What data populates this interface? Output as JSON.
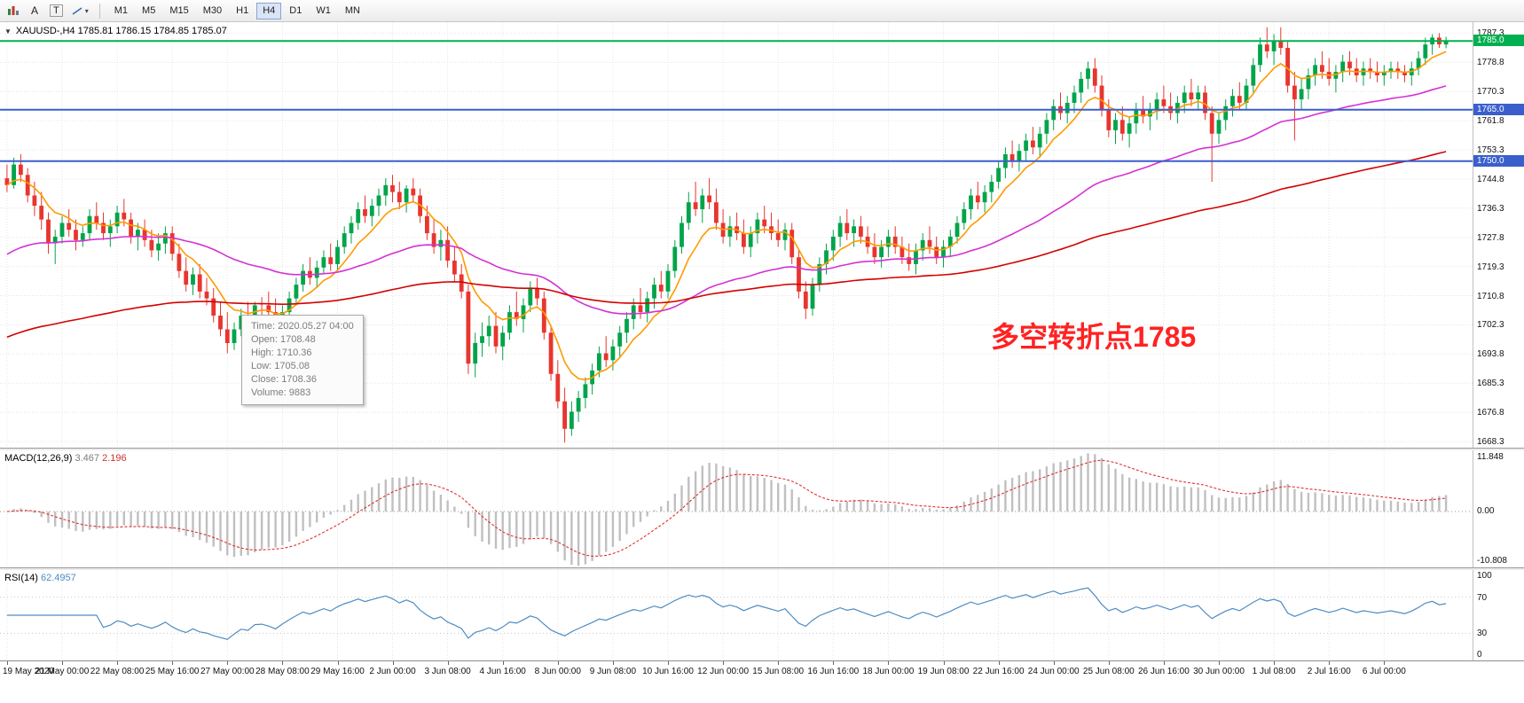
{
  "toolbar": {
    "letter_buttons": [
      "A",
      "T"
    ],
    "timeframes": [
      "M1",
      "M5",
      "M15",
      "M30",
      "H1",
      "H4",
      "D1",
      "W1",
      "MN"
    ],
    "active_timeframe": "H4"
  },
  "chart": {
    "symbol_line": "XAUUSD-,H4  1785.81 1786.15 1784.85 1785.07",
    "annotation": "多空转折点1785",
    "price_range": [
      1666.5,
      1790.5
    ],
    "y_ticks": [
      1787.3,
      1778.8,
      1770.3,
      1761.8,
      1753.3,
      1744.8,
      1736.3,
      1727.8,
      1719.3,
      1710.8,
      1702.3,
      1693.8,
      1685.3,
      1676.8,
      1668.3
    ],
    "tags": [
      {
        "text": "1785.0",
        "price": 1785.0,
        "color_key": "hline_green"
      },
      {
        "text": "1765.0",
        "price": 1765.0,
        "color_key": "hline_blue"
      },
      {
        "text": "1750.0",
        "price": 1750.0,
        "color_key": "hline_blue"
      }
    ],
    "hlines": [
      {
        "price": 1785.0,
        "color_key": "hline_green",
        "width": 2
      },
      {
        "price": 1765.0,
        "color_key": "hline_blue",
        "width": 2
      },
      {
        "price": 1750.0,
        "color_key": "hline_blue",
        "width": 2
      }
    ],
    "tooltip": {
      "rows": [
        "Time: 2020.05.27 04:00",
        "Open: 1708.48",
        "High: 1710.36",
        "Low:  1705.08",
        "Close: 1708.36",
        "Volume: 9883"
      ]
    }
  },
  "macd": {
    "label": "MACD(12,26,9)",
    "value_main": "3.467",
    "value_signal": "2.196",
    "fast": 12,
    "slow": 26,
    "signal": 9,
    "range": [
      -10.808,
      11.848
    ],
    "axis_labels": [
      "11.848",
      "0.00",
      "-10.808"
    ]
  },
  "rsi": {
    "label": "RSI(14)",
    "value": "62.4957",
    "period": 14,
    "levels": [
      70,
      30
    ],
    "axis_labels": [
      {
        "text": "100",
        "value": 100
      },
      {
        "text": "70",
        "value": 70
      },
      {
        "text": "30",
        "value": 30
      },
      {
        "text": "0",
        "value": 0
      }
    ]
  },
  "colors": {
    "up": "#00a44a",
    "down": "#e8352e",
    "ma_fast": "#ff9a00",
    "ma_mid": "#d431d4",
    "ma_slow": "#d40000",
    "hline_green": "#00b050",
    "hline_blue": "#3a5fcd",
    "macd_hist": "#c0c0c0",
    "macd_signal": "#e03030",
    "rsi": "#4e8cc2",
    "annotation": "#ff2222"
  },
  "chart_data": {
    "type": "candlestick",
    "symbol": "XAUUSD-",
    "timeframe": "H4",
    "label_step": 8,
    "x_labels": [
      "19 May 2020",
      "21 May 00:00",
      "22 May 08:00",
      "25 May 16:00",
      "27 May 00:00",
      "28 May 08:00",
      "29 May 16:00",
      "2 Jun 00:00",
      "3 Jun 08:00",
      "4 Jun 16:00",
      "8 Jun 00:00",
      "9 Jun 08:00",
      "10 Jun 16:00",
      "12 Jun 00:00",
      "15 Jun 08:00",
      "16 Jun 16:00",
      "18 Jun 00:00",
      "19 Jun 08:00",
      "22 Jun 16:00",
      "24 Jun 00:00",
      "25 Jun 08:00",
      "26 Jun 16:00",
      "30 Jun 00:00",
      "1 Jul 08:00",
      "2 Jul 16:00",
      "6 Jul 00:00"
    ],
    "moving_averages": [
      {
        "name": "fast",
        "period": 8,
        "seed": null,
        "color_key": "ma_fast"
      },
      {
        "name": "mid",
        "period": 48,
        "seed": 1722,
        "color_key": "ma_mid"
      },
      {
        "name": "slow",
        "period": 130,
        "seed": 1698,
        "color_key": "ma_slow"
      }
    ],
    "ohlc": [
      [
        1745,
        1749,
        1741,
        1743
      ],
      [
        1743,
        1751,
        1742,
        1749
      ],
      [
        1749,
        1752,
        1744,
        1746
      ],
      [
        1746,
        1748,
        1738,
        1740
      ],
      [
        1740,
        1744,
        1734,
        1737
      ],
      [
        1737,
        1741,
        1730,
        1733
      ],
      [
        1733,
        1735,
        1723,
        1726
      ],
      [
        1726,
        1730,
        1720,
        1728
      ],
      [
        1728,
        1734,
        1726,
        1732
      ],
      [
        1732,
        1736,
        1728,
        1730
      ],
      [
        1730,
        1733,
        1724,
        1727
      ],
      [
        1727,
        1731,
        1725,
        1729
      ],
      [
        1729,
        1736,
        1727,
        1734
      ],
      [
        1734,
        1738,
        1730,
        1732
      ],
      [
        1732,
        1735,
        1727,
        1729
      ],
      [
        1729,
        1733,
        1725,
        1731
      ],
      [
        1731,
        1737,
        1729,
        1735
      ],
      [
        1735,
        1739,
        1731,
        1733
      ],
      [
        1733,
        1735,
        1726,
        1728
      ],
      [
        1728,
        1732,
        1724,
        1730
      ],
      [
        1730,
        1733,
        1725,
        1727
      ],
      [
        1727,
        1730,
        1722,
        1724
      ],
      [
        1724,
        1729,
        1721,
        1726
      ],
      [
        1726,
        1731,
        1723,
        1729
      ],
      [
        1729,
        1731,
        1721,
        1723
      ],
      [
        1723,
        1726,
        1716,
        1718
      ],
      [
        1718,
        1722,
        1712,
        1714
      ],
      [
        1714,
        1719,
        1711,
        1717
      ],
      [
        1717,
        1720,
        1710,
        1712
      ],
      [
        1712,
        1716,
        1708,
        1710
      ],
      [
        1710,
        1713,
        1703,
        1705
      ],
      [
        1705,
        1709,
        1699,
        1701
      ],
      [
        1701,
        1706,
        1694,
        1697
      ],
      [
        1697,
        1703,
        1695,
        1701
      ],
      [
        1701,
        1707,
        1699,
        1705
      ],
      [
        1705,
        1709,
        1701,
        1703
      ],
      [
        1703,
        1709,
        1701,
        1708
      ],
      [
        1708.5,
        1710.4,
        1705.1,
        1708.4
      ],
      [
        1708,
        1712,
        1704,
        1706
      ],
      [
        1706,
        1710,
        1700,
        1702
      ],
      [
        1702,
        1708,
        1700,
        1706
      ],
      [
        1706,
        1712,
        1704,
        1710
      ],
      [
        1710,
        1716,
        1708,
        1714
      ],
      [
        1714,
        1720,
        1712,
        1718
      ],
      [
        1718,
        1722,
        1714,
        1716
      ],
      [
        1716,
        1721,
        1713,
        1719
      ],
      [
        1719,
        1724,
        1717,
        1722
      ],
      [
        1722,
        1726,
        1718,
        1720
      ],
      [
        1720,
        1727,
        1718,
        1725
      ],
      [
        1725,
        1731,
        1723,
        1729
      ],
      [
        1729,
        1734,
        1726,
        1732
      ],
      [
        1732,
        1738,
        1730,
        1736
      ],
      [
        1736,
        1740,
        1732,
        1734
      ],
      [
        1734,
        1739,
        1731,
        1737
      ],
      [
        1737,
        1742,
        1734,
        1740
      ],
      [
        1740,
        1745,
        1737,
        1743
      ],
      [
        1743,
        1746,
        1738,
        1741
      ],
      [
        1741,
        1744,
        1736,
        1738
      ],
      [
        1738,
        1743,
        1735,
        1742
      ],
      [
        1742,
        1745,
        1738,
        1740
      ],
      [
        1740,
        1742,
        1732,
        1734
      ],
      [
        1734,
        1737,
        1727,
        1729
      ],
      [
        1729,
        1733,
        1723,
        1725
      ],
      [
        1725,
        1730,
        1721,
        1727
      ],
      [
        1727,
        1731,
        1719,
        1721
      ],
      [
        1721,
        1725,
        1715,
        1717
      ],
      [
        1717,
        1720,
        1710,
        1712
      ],
      [
        1712,
        1714,
        1688,
        1691
      ],
      [
        1691,
        1700,
        1687,
        1697
      ],
      [
        1697,
        1703,
        1693,
        1699
      ],
      [
        1699,
        1705,
        1696,
        1702
      ],
      [
        1702,
        1706,
        1694,
        1696
      ],
      [
        1696,
        1702,
        1692,
        1700
      ],
      [
        1700,
        1708,
        1698,
        1706
      ],
      [
        1706,
        1712,
        1702,
        1704
      ],
      [
        1704,
        1710,
        1700,
        1708
      ],
      [
        1708,
        1715,
        1706,
        1713
      ],
      [
        1713,
        1716,
        1708,
        1710
      ],
      [
        1710,
        1712,
        1698,
        1700
      ],
      [
        1700,
        1702,
        1686,
        1688
      ],
      [
        1688,
        1692,
        1678,
        1680
      ],
      [
        1680,
        1684,
        1668,
        1672
      ],
      [
        1672,
        1680,
        1670,
        1677
      ],
      [
        1677,
        1683,
        1674,
        1681
      ],
      [
        1681,
        1687,
        1678,
        1685
      ],
      [
        1685,
        1691,
        1682,
        1689
      ],
      [
        1689,
        1696,
        1687,
        1694
      ],
      [
        1694,
        1699,
        1690,
        1692
      ],
      [
        1692,
        1698,
        1689,
        1696
      ],
      [
        1696,
        1702,
        1693,
        1700
      ],
      [
        1700,
        1706,
        1697,
        1704
      ],
      [
        1704,
        1710,
        1701,
        1708
      ],
      [
        1708,
        1713,
        1704,
        1706
      ],
      [
        1706,
        1712,
        1703,
        1710
      ],
      [
        1710,
        1716,
        1707,
        1714
      ],
      [
        1714,
        1718,
        1710,
        1712
      ],
      [
        1712,
        1720,
        1710,
        1718
      ],
      [
        1718,
        1727,
        1716,
        1725
      ],
      [
        1725,
        1734,
        1723,
        1732
      ],
      [
        1732,
        1741,
        1730,
        1738
      ],
      [
        1738,
        1744,
        1734,
        1736
      ],
      [
        1736,
        1742,
        1732,
        1740
      ],
      [
        1740,
        1745,
        1736,
        1738
      ],
      [
        1738,
        1742,
        1730,
        1732
      ],
      [
        1732,
        1736,
        1726,
        1728
      ],
      [
        1728,
        1734,
        1725,
        1731
      ],
      [
        1731,
        1735,
        1727,
        1729
      ],
      [
        1729,
        1733,
        1723,
        1725
      ],
      [
        1725,
        1731,
        1722,
        1729
      ],
      [
        1729,
        1735,
        1726,
        1733
      ],
      [
        1733,
        1737,
        1729,
        1731
      ],
      [
        1731,
        1735,
        1727,
        1729
      ],
      [
        1729,
        1733,
        1725,
        1727
      ],
      [
        1727,
        1732,
        1724,
        1730
      ],
      [
        1730,
        1732,
        1720,
        1722
      ],
      [
        1722,
        1724,
        1710,
        1712
      ],
      [
        1712,
        1715,
        1704,
        1707
      ],
      [
        1707,
        1716,
        1705,
        1714
      ],
      [
        1714,
        1722,
        1712,
        1720
      ],
      [
        1720,
        1726,
        1717,
        1724
      ],
      [
        1724,
        1730,
        1721,
        1728
      ],
      [
        1728,
        1734,
        1725,
        1732
      ],
      [
        1732,
        1736,
        1727,
        1729
      ],
      [
        1729,
        1733,
        1725,
        1731
      ],
      [
        1731,
        1734,
        1726,
        1728
      ],
      [
        1728,
        1731,
        1723,
        1725
      ],
      [
        1725,
        1729,
        1720,
        1722
      ],
      [
        1722,
        1727,
        1719,
        1725
      ],
      [
        1725,
        1730,
        1722,
        1728
      ],
      [
        1728,
        1731,
        1723,
        1725
      ],
      [
        1725,
        1728,
        1720,
        1722
      ],
      [
        1722,
        1726,
        1718,
        1720
      ],
      [
        1720,
        1726,
        1717,
        1724
      ],
      [
        1724,
        1729,
        1721,
        1727
      ],
      [
        1727,
        1731,
        1723,
        1725
      ],
      [
        1725,
        1728,
        1720,
        1722
      ],
      [
        1722,
        1727,
        1719,
        1725
      ],
      [
        1725,
        1730,
        1722,
        1728
      ],
      [
        1728,
        1734,
        1726,
        1732
      ],
      [
        1732,
        1738,
        1730,
        1736
      ],
      [
        1736,
        1742,
        1733,
        1740
      ],
      [
        1740,
        1744,
        1736,
        1738
      ],
      [
        1738,
        1743,
        1735,
        1741
      ],
      [
        1741,
        1746,
        1738,
        1744
      ],
      [
        1744,
        1750,
        1742,
        1748
      ],
      [
        1748,
        1754,
        1745,
        1752
      ],
      [
        1752,
        1756,
        1748,
        1750
      ],
      [
        1750,
        1755,
        1747,
        1753
      ],
      [
        1753,
        1758,
        1750,
        1756
      ],
      [
        1756,
        1760,
        1752,
        1754
      ],
      [
        1754,
        1760,
        1751,
        1758
      ],
      [
        1758,
        1764,
        1755,
        1762
      ],
      [
        1762,
        1768,
        1759,
        1766
      ],
      [
        1766,
        1770,
        1762,
        1764
      ],
      [
        1764,
        1769,
        1761,
        1767
      ],
      [
        1767,
        1772,
        1764,
        1770
      ],
      [
        1770,
        1776,
        1767,
        1774
      ],
      [
        1774,
        1779,
        1771,
        1777
      ],
      [
        1777,
        1780,
        1770,
        1772
      ],
      [
        1772,
        1775,
        1763,
        1765
      ],
      [
        1765,
        1768,
        1757,
        1759
      ],
      [
        1759,
        1764,
        1755,
        1762
      ],
      [
        1762,
        1766,
        1756,
        1758
      ],
      [
        1758,
        1763,
        1754,
        1761
      ],
      [
        1761,
        1767,
        1758,
        1765
      ],
      [
        1765,
        1769,
        1761,
        1763
      ],
      [
        1763,
        1767,
        1759,
        1765
      ],
      [
        1765,
        1770,
        1762,
        1768
      ],
      [
        1768,
        1772,
        1764,
        1766
      ],
      [
        1766,
        1770,
        1762,
        1764
      ],
      [
        1764,
        1769,
        1761,
        1767
      ],
      [
        1767,
        1772,
        1764,
        1770
      ],
      [
        1770,
        1774,
        1766,
        1768
      ],
      [
        1768,
        1772,
        1765,
        1770
      ],
      [
        1770,
        1772,
        1762,
        1764
      ],
      [
        1764,
        1766,
        1744,
        1758
      ],
      [
        1758,
        1764,
        1755,
        1762
      ],
      [
        1762,
        1768,
        1759,
        1766
      ],
      [
        1766,
        1771,
        1763,
        1769
      ],
      [
        1769,
        1773,
        1765,
        1767
      ],
      [
        1767,
        1774,
        1765,
        1772
      ],
      [
        1772,
        1780,
        1770,
        1778
      ],
      [
        1778,
        1786,
        1776,
        1784
      ],
      [
        1784,
        1789,
        1780,
        1782
      ],
      [
        1782,
        1787,
        1778,
        1785
      ],
      [
        1785,
        1789,
        1781,
        1783
      ],
      [
        1783,
        1785,
        1770,
        1772
      ],
      [
        1772,
        1776,
        1756,
        1768
      ],
      [
        1768,
        1774,
        1765,
        1771
      ],
      [
        1771,
        1777,
        1768,
        1775
      ],
      [
        1775,
        1780,
        1772,
        1778
      ],
      [
        1778,
        1782,
        1774,
        1776
      ],
      [
        1776,
        1780,
        1772,
        1774
      ],
      [
        1774,
        1778,
        1770,
        1776
      ],
      [
        1776,
        1781,
        1773,
        1779
      ],
      [
        1779,
        1782,
        1775,
        1777
      ],
      [
        1777,
        1780,
        1773,
        1775
      ],
      [
        1775,
        1779,
        1772,
        1777
      ],
      [
        1777,
        1780,
        1774,
        1776
      ],
      [
        1776,
        1779,
        1773,
        1775
      ],
      [
        1775,
        1778,
        1772,
        1776
      ],
      [
        1776,
        1779,
        1774,
        1777
      ],
      [
        1777,
        1779,
        1774,
        1776
      ],
      [
        1776,
        1778,
        1773,
        1775
      ],
      [
        1775,
        1779,
        1772,
        1777
      ],
      [
        1777,
        1782,
        1775,
        1780
      ],
      [
        1780,
        1786,
        1778,
        1784
      ],
      [
        1784,
        1787,
        1781,
        1786
      ],
      [
        1786,
        1787.3,
        1783,
        1784
      ],
      [
        1784,
        1786.2,
        1782.9,
        1785.1
      ]
    ]
  }
}
